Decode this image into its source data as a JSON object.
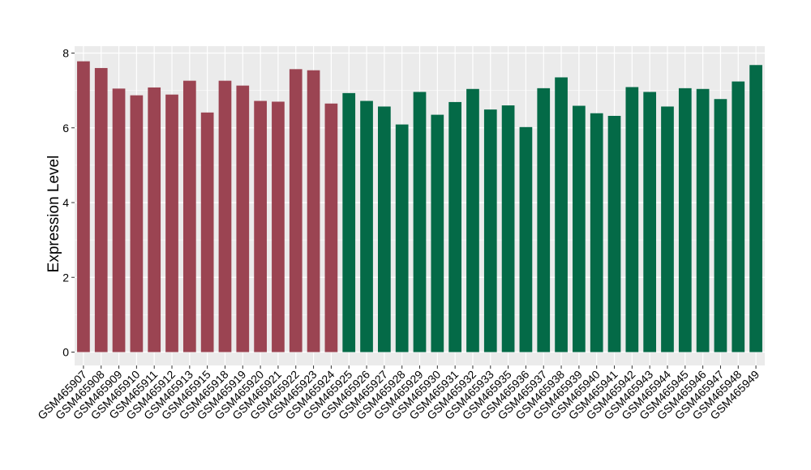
{
  "chart_data": {
    "type": "bar",
    "title": "",
    "xlabel": "",
    "ylabel": "Expression Level",
    "ylim": [
      0,
      8
    ],
    "yticks": [
      0,
      2,
      4,
      6,
      8
    ],
    "grid": true,
    "legend": "none",
    "colors": {
      "group_1": "#9b4452",
      "group_2": "#046a47",
      "panel": "#ebebeb",
      "gridline": "#ffffff"
    },
    "categories": [
      "GSM465907",
      "GSM465908",
      "GSM465909",
      "GSM465910",
      "GSM465911",
      "GSM465912",
      "GSM465913",
      "GSM465915",
      "GSM465918",
      "GSM465919",
      "GSM465920",
      "GSM465921",
      "GSM465922",
      "GSM465923",
      "GSM465924",
      "GSM465925",
      "GSM465926",
      "GSM465927",
      "GSM465928",
      "GSM465929",
      "GSM465930",
      "GSM465931",
      "GSM465932",
      "GSM465933",
      "GSM465935",
      "GSM465936",
      "GSM465937",
      "GSM465938",
      "GSM465939",
      "GSM465940",
      "GSM465941",
      "GSM465942",
      "GSM465943",
      "GSM465944",
      "GSM465945",
      "GSM465946",
      "GSM465947",
      "GSM465948",
      "GSM465949"
    ],
    "values": [
      7.78,
      7.6,
      7.05,
      6.87,
      7.08,
      6.89,
      7.26,
      6.41,
      7.26,
      7.13,
      6.72,
      6.7,
      7.57,
      7.54,
      6.65,
      6.93,
      6.72,
      6.57,
      6.09,
      6.96,
      6.35,
      6.69,
      7.04,
      6.49,
      6.6,
      6.02,
      7.06,
      7.35,
      6.59,
      6.39,
      6.32,
      7.09,
      6.96,
      6.57,
      7.06,
      7.04,
      6.77,
      7.24,
      7.68
    ],
    "group": [
      1,
      1,
      1,
      1,
      1,
      1,
      1,
      1,
      1,
      1,
      1,
      1,
      1,
      1,
      1,
      2,
      2,
      2,
      2,
      2,
      2,
      2,
      2,
      2,
      2,
      2,
      2,
      2,
      2,
      2,
      2,
      2,
      2,
      2,
      2,
      2,
      2,
      2,
      2
    ]
  }
}
